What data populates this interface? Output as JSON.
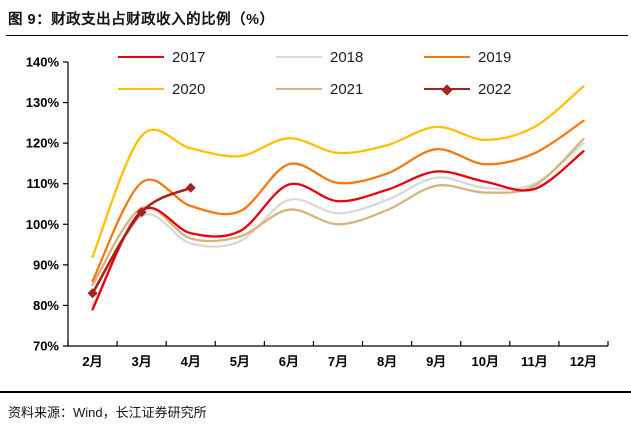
{
  "header": {
    "title": "图 9：财政支出占财政收入的比例（%）"
  },
  "footer": {
    "source": "资料来源：Wind，长江证券研究所"
  },
  "chart_data": {
    "type": "line",
    "title": "财政支出占财政收入的比例（%）",
    "xlabel": "",
    "ylabel": "",
    "grid": false,
    "legend_position": "top",
    "ylim": [
      70,
      140
    ],
    "y_ticks": [
      "140%",
      "130%",
      "120%",
      "110%",
      "100%",
      "90%",
      "80%",
      "70%"
    ],
    "categories": [
      "2月",
      "3月",
      "4月",
      "5月",
      "6月",
      "7月",
      "8月",
      "9月",
      "10月",
      "11月",
      "12月"
    ],
    "series": [
      {
        "name": "2017",
        "color": "#E8000B",
        "marker": "none",
        "values": [
          79,
          103.3,
          97.8,
          98.3,
          109.8,
          105.7,
          108.5,
          113,
          110.5,
          108.7,
          118
        ]
      },
      {
        "name": "2018",
        "color": "#D9D9D9",
        "marker": "none",
        "values": [
          80,
          102,
          95.3,
          95.8,
          106,
          102.7,
          106,
          111.5,
          109,
          110,
          120
        ]
      },
      {
        "name": "2019",
        "color": "#F5790F",
        "marker": "none",
        "values": [
          86,
          110.3,
          104.5,
          103.2,
          114.8,
          110.2,
          112.5,
          118.5,
          114.8,
          117.5,
          125.5
        ]
      },
      {
        "name": "2020",
        "color": "#FFC000",
        "marker": "none",
        "values": [
          92,
          121.8,
          118.7,
          116.8,
          121.2,
          117.6,
          119.5,
          124,
          120.8,
          124,
          134
        ]
      },
      {
        "name": "2021",
        "color": "#D8B47C",
        "marker": "none",
        "values": [
          85,
          104,
          96.5,
          97,
          103.6,
          100,
          103.5,
          109.5,
          107.8,
          109.5,
          121
        ]
      },
      {
        "name": "2022",
        "color": "#A5231D",
        "marker": "diamond",
        "values": [
          83,
          103,
          109
        ]
      }
    ]
  }
}
